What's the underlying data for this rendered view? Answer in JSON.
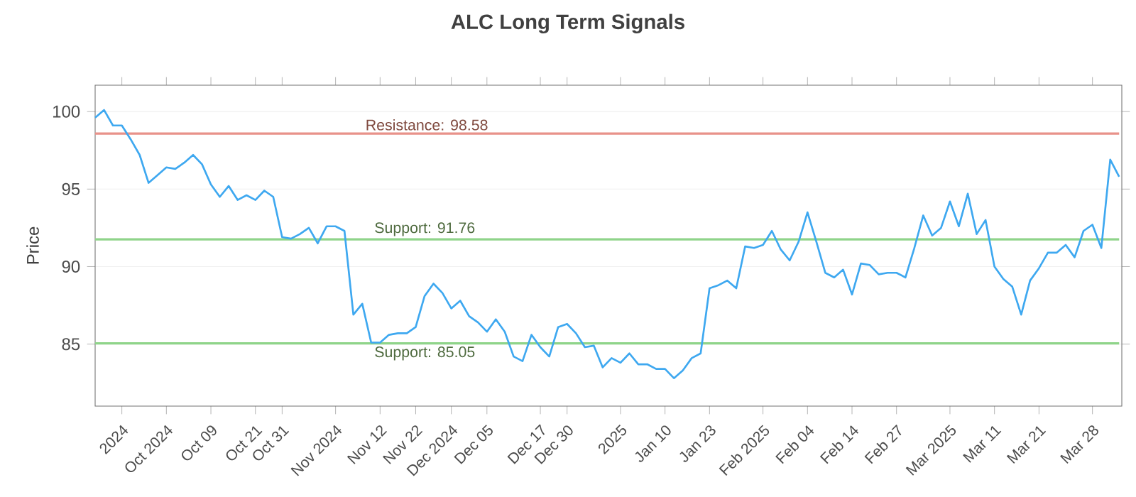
{
  "chart_data": {
    "type": "line",
    "title": "ALC Long Term Signals",
    "ylabel": "Price",
    "categories": [
      null,
      null,
      null,
      "2024",
      null,
      null,
      null,
      null,
      "Oct 2024",
      null,
      null,
      null,
      null,
      "Oct 09",
      null,
      null,
      null,
      null,
      "Oct 21",
      null,
      null,
      "Oct 31",
      null,
      null,
      null,
      null,
      null,
      "Nov 2024",
      null,
      null,
      null,
      null,
      "Nov 12",
      null,
      null,
      null,
      "Nov 22",
      null,
      null,
      null,
      "Dec 2024",
      null,
      null,
      null,
      "Dec 05",
      null,
      null,
      null,
      null,
      null,
      "Dec 17",
      null,
      null,
      "Dec 30",
      null,
      null,
      null,
      null,
      null,
      "2025",
      null,
      null,
      null,
      null,
      "Jan 10",
      null,
      null,
      null,
      null,
      "Jan 23",
      null,
      null,
      null,
      null,
      null,
      "Feb 2025",
      null,
      null,
      null,
      null,
      "Feb 04",
      null,
      null,
      null,
      null,
      "Feb 14",
      null,
      null,
      null,
      null,
      "Feb 27",
      null,
      null,
      null,
      null,
      null,
      "Mar 2025",
      null,
      null,
      null,
      null,
      "Mar 11",
      null,
      null,
      null,
      null,
      "Mar 21",
      null,
      null,
      null,
      null,
      null,
      "Mar 28",
      null,
      null,
      null
    ],
    "series": [
      {
        "color": "#3ea8f0",
        "values": [
          99.6,
          100.1,
          99.1,
          99.1,
          98.2,
          97.2,
          95.4,
          95.9,
          96.4,
          96.3,
          96.7,
          97.2,
          96.6,
          95.3,
          94.5,
          95.2,
          94.3,
          94.6,
          94.3,
          94.9,
          94.5,
          91.9,
          91.8,
          92.1,
          92.5,
          91.5,
          92.6,
          92.6,
          92.3,
          86.9,
          87.6,
          85.1,
          85.1,
          85.6,
          85.7,
          85.7,
          86.1,
          88.1,
          88.9,
          88.3,
          87.3,
          87.8,
          86.8,
          86.4,
          85.8,
          86.6,
          85.8,
          84.2,
          83.9,
          85.6,
          84.8,
          84.2,
          86.1,
          86.3,
          85.7,
          84.8,
          84.9,
          83.5,
          84.1,
          83.8,
          84.4,
          83.7,
          83.7,
          83.4,
          83.4,
          82.8,
          83.3,
          84.1,
          84.4,
          88.6,
          88.8,
          89.1,
          88.6,
          91.3,
          91.2,
          91.4,
          92.3,
          91.1,
          90.4,
          91.6,
          93.5,
          91.6,
          89.6,
          89.3,
          89.8,
          88.2,
          90.2,
          90.1,
          89.5,
          89.6,
          89.6,
          89.3,
          91.2,
          93.3,
          92.0,
          92.5,
          94.2,
          92.6,
          94.7,
          92.1,
          93.0,
          90.0,
          89.2,
          88.7,
          86.9,
          89.1,
          89.9,
          90.9,
          90.9,
          91.4,
          90.6,
          92.3,
          92.7,
          91.2,
          96.9,
          95.8
        ]
      }
    ],
    "ylim": [
      81,
      101.7
    ],
    "yticks": [
      85,
      90,
      95,
      100
    ],
    "grid": "y",
    "line_style": "solid",
    "marker": "none",
    "ref_lines": [
      {
        "axis": "y",
        "value": 98.58,
        "label": "Resistance: 98.58",
        "color": "#e8928a"
      },
      {
        "axis": "y",
        "value": 91.76,
        "label": "Support: 91.76",
        "color": "#8fd48a"
      },
      {
        "axis": "y",
        "value": 85.05,
        "label": "Support: 85.05",
        "color": "#8fd48a"
      }
    ]
  }
}
